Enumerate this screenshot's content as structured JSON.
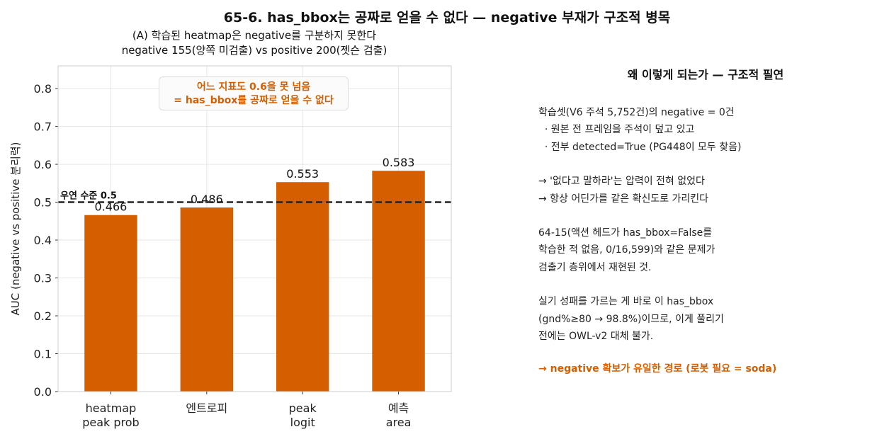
{
  "figure": {
    "suptitle": "65-6. has_bbox는 공짜로 얻을 수 없다 — negative 부재가 구조적 병목",
    "subtitle_line1": "(A) 학습된 heatmap은 negative를 구분하지 못한다",
    "subtitle_line2": "negative 155(양쪽 미검출) vs positive 200(젯슨 검출)",
    "annotation_line1": "어느 지표도 0.6을 못 넘음",
    "annotation_line2": "= has_bbox를 공짜로 얻을 수 없다",
    "bar_color": "#d55e00",
    "annotation_color": "#d55e00"
  },
  "chart_data": {
    "type": "bar",
    "categories": [
      [
        "heatmap",
        "peak prob"
      ],
      [
        "엔트로피"
      ],
      [
        "peak",
        "logit"
      ],
      [
        "예측",
        "area"
      ]
    ],
    "values": [
      0.466,
      0.486,
      0.553,
      0.583
    ],
    "value_labels": [
      "0.466",
      "0.486",
      "0.553",
      "0.583"
    ],
    "ylabel": "AUC (negative vs positive 분리력)",
    "xlabel": "",
    "ylim": [
      0.0,
      0.86
    ],
    "yticks": [
      "0.0",
      "0.1",
      "0.2",
      "0.3",
      "0.4",
      "0.5",
      "0.6",
      "0.7",
      "0.8"
    ],
    "grid": true,
    "reference_line": {
      "value": 0.5,
      "label": "우연 수준 0.5",
      "style": "dashed"
    }
  },
  "panel": {
    "title": "왜 이렇게 되는가 — 구조적 필연",
    "lines": [
      "학습셋(V6 주석 5,752건)의 negative = 0건",
      "  · 원본 전 프레임을 주석이 덮고 있고",
      "  · 전부 detected=True (PG448이 모두 찾음)",
      "",
      "→ '없다고 말하라'는 압력이 전혀 없었다",
      "→ 항상 어딘가를 같은 확신도로 가리킨다",
      "",
      "64-15(액션 헤드가 has_bbox=False를",
      "학습한 적 없음, 0/16,599)와 같은 문제가",
      "검출기 층위에서 재현된 것.",
      "",
      "실기 성패를 가르는 게 바로 이 has_bbox",
      "(gnd%≥80 → 98.8%)이므로, 이게 풀리기",
      "전에는 OWL-v2 대체 불가."
    ],
    "conclusion": "→ negative 확보가 유일한 경로 (로봇 필요 = soda)"
  }
}
